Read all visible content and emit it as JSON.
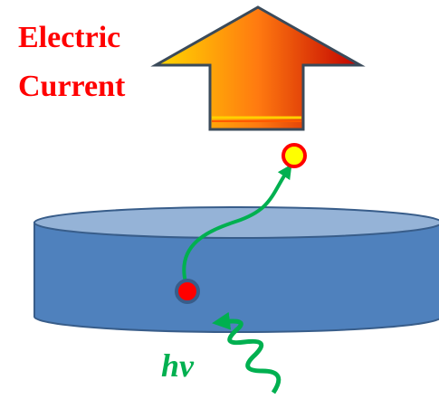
{
  "labels": {
    "current": [
      "Electric",
      "Current"
    ],
    "photon": "hv"
  }
}
